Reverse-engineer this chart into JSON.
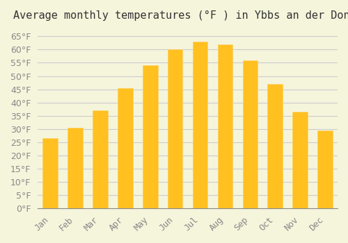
{
  "title": "Average monthly temperatures (°F ) in Ybbs an der Donau",
  "months": [
    "Jan",
    "Feb",
    "Mar",
    "Apr",
    "May",
    "Jun",
    "Jul",
    "Aug",
    "Sep",
    "Oct",
    "Nov",
    "Dec"
  ],
  "values": [
    26.5,
    30.5,
    37.0,
    45.5,
    54.0,
    60.0,
    63.0,
    62.0,
    56.0,
    47.0,
    36.5,
    29.5
  ],
  "bar_color": "#FFC020",
  "bar_edge_color": "#FFD060",
  "background_color": "#F5F5DC",
  "grid_color": "#CCCCCC",
  "ylim": [
    0,
    68
  ],
  "yticks": [
    0,
    5,
    10,
    15,
    20,
    25,
    30,
    35,
    40,
    45,
    50,
    55,
    60,
    65
  ],
  "title_fontsize": 11,
  "tick_fontsize": 9,
  "font_color": "#888888"
}
